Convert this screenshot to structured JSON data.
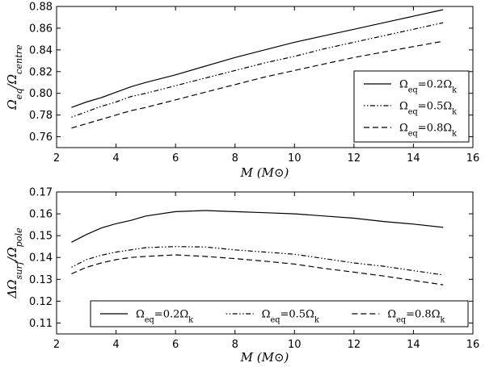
{
  "chart_data": [
    {
      "type": "line",
      "xlabel": "M (M⊙)",
      "ylabel": "Ωeq/Ωcentre",
      "xlim": [
        2,
        16
      ],
      "ylim": [
        0.75,
        0.88
      ],
      "xticks": [
        2,
        4,
        6,
        8,
        10,
        12,
        14,
        16
      ],
      "xtick_labels": [
        "2",
        "4",
        "6",
        "8",
        "10",
        "12",
        "14",
        "16"
      ],
      "yticks": [
        0.76,
        0.78,
        0.8,
        0.82,
        0.84,
        0.86,
        0.88
      ],
      "ytick_labels": [
        "0.76",
        "0.78",
        "0.80",
        "0.82",
        "0.84",
        "0.86",
        "0.88"
      ],
      "grid": false,
      "legend": {
        "position": "lower-right",
        "columns": 1
      },
      "series": [
        {
          "name": "Ωeq=0.2Ωk",
          "style": "solid",
          "x": [
            2.5,
            3,
            3.5,
            4,
            4.5,
            5,
            6,
            7,
            8,
            9,
            10,
            11,
            12,
            13,
            14,
            15
          ],
          "y": [
            0.787,
            0.792,
            0.796,
            0.801,
            0.806,
            0.81,
            0.817,
            0.825,
            0.833,
            0.84,
            0.847,
            0.853,
            0.859,
            0.865,
            0.871,
            0.877
          ]
        },
        {
          "name": "Ωeq=0.5Ωk",
          "style": "dashdot",
          "x": [
            2.5,
            3,
            3.5,
            4,
            4.5,
            5,
            6,
            7,
            8,
            9,
            10,
            11,
            12,
            13,
            14,
            15
          ],
          "y": [
            0.778,
            0.783,
            0.788,
            0.792,
            0.797,
            0.8,
            0.807,
            0.814,
            0.821,
            0.828,
            0.834,
            0.841,
            0.847,
            0.853,
            0.859,
            0.865
          ]
        },
        {
          "name": "Ωeq=0.8Ωk",
          "style": "dashed",
          "x": [
            2.5,
            3,
            3.5,
            4,
            4.5,
            5,
            6,
            7,
            8,
            9,
            10,
            11,
            12,
            13,
            14,
            15
          ],
          "y": [
            0.768,
            0.772,
            0.776,
            0.78,
            0.784,
            0.787,
            0.794,
            0.801,
            0.808,
            0.815,
            0.821,
            0.827,
            0.833,
            0.838,
            0.843,
            0.848
          ]
        }
      ]
    },
    {
      "type": "line",
      "xlabel": "M (M⊙)",
      "ylabel": "ΔΩsurf/Ωpole",
      "xlim": [
        2,
        16
      ],
      "ylim": [
        0.105,
        0.17
      ],
      "xticks": [
        2,
        4,
        6,
        8,
        10,
        12,
        14,
        16
      ],
      "xtick_labels": [
        "2",
        "4",
        "6",
        "8",
        "10",
        "12",
        "14",
        "16"
      ],
      "yticks": [
        0.11,
        0.12,
        0.13,
        0.14,
        0.15,
        0.16,
        0.17
      ],
      "ytick_labels": [
        "0.11",
        "0.12",
        "0.13",
        "0.14",
        "0.15",
        "0.16",
        "0.17"
      ],
      "grid": false,
      "legend": {
        "position": "bottom",
        "columns": 3
      },
      "series": [
        {
          "name": "Ωeq=0.2Ωk",
          "style": "solid",
          "x": [
            2.5,
            3,
            3.5,
            4,
            4.5,
            5,
            6,
            7,
            8,
            9,
            10,
            11,
            12,
            13,
            14,
            15
          ],
          "y": [
            0.147,
            0.1505,
            0.1535,
            0.1555,
            0.157,
            0.159,
            0.161,
            0.1615,
            0.161,
            0.1605,
            0.16,
            0.159,
            0.158,
            0.1565,
            0.1553,
            0.1538
          ]
        },
        {
          "name": "Ωeq=0.5Ωk",
          "style": "dashdot",
          "x": [
            2.5,
            3,
            3.5,
            4,
            4.5,
            5,
            6,
            7,
            8,
            9,
            10,
            11,
            12,
            13,
            14,
            15
          ],
          "y": [
            0.1355,
            0.139,
            0.141,
            0.1425,
            0.1435,
            0.1445,
            0.145,
            0.1448,
            0.1435,
            0.1425,
            0.1415,
            0.1395,
            0.1375,
            0.136,
            0.134,
            0.132
          ]
        },
        {
          "name": "Ωeq=0.8Ωk",
          "style": "dashed",
          "x": [
            2.5,
            3,
            3.5,
            4,
            4.5,
            5,
            6,
            7,
            8,
            9,
            10,
            11,
            12,
            13,
            14,
            15
          ],
          "y": [
            0.1325,
            0.1355,
            0.1375,
            0.139,
            0.14,
            0.1405,
            0.1412,
            0.1405,
            0.1395,
            0.1383,
            0.137,
            0.135,
            0.1333,
            0.1315,
            0.1295,
            0.1275
          ]
        }
      ]
    }
  ]
}
